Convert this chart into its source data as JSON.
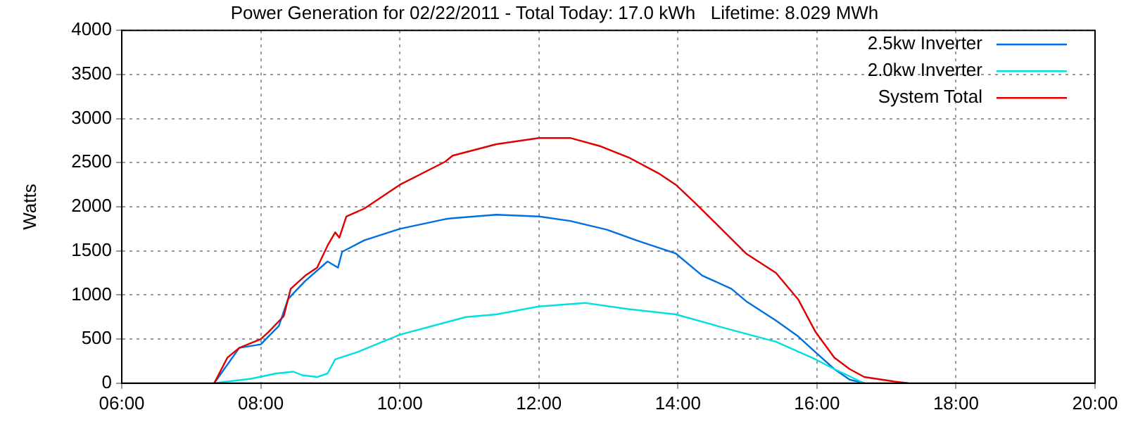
{
  "chart_data": {
    "type": "line",
    "title": "Power Generation for 02/22/2011 - Total Today: 17.0 kWh   Lifetime: 8.029 MWh",
    "ylabel": "Watts",
    "xlim": [
      6,
      20
    ],
    "xticks": [
      {
        "value": 6,
        "label": "06:00"
      },
      {
        "value": 8,
        "label": "08:00"
      },
      {
        "value": 10,
        "label": "10:00"
      },
      {
        "value": 12,
        "label": "12:00"
      },
      {
        "value": 14,
        "label": "14:00"
      },
      {
        "value": 16,
        "label": "16:00"
      },
      {
        "value": 18,
        "label": "18:00"
      },
      {
        "value": 20,
        "label": "20:00"
      }
    ],
    "ylim": [
      0,
      4000
    ],
    "yticks": [
      0,
      500,
      1000,
      1500,
      2000,
      2500,
      3000,
      3500,
      4000
    ],
    "grid": true,
    "legend": "top right",
    "marker": "none",
    "line_style": "solid",
    "series": [
      {
        "name": "2.5kw Inverter",
        "color": "#0070e0",
        "x": [
          7.33,
          7.69,
          8.0,
          8.11,
          8.26,
          8.39,
          8.47,
          8.64,
          8.96,
          9.11,
          9.17,
          9.49,
          10.0,
          10.65,
          10.76,
          11.39,
          12.0,
          12.45,
          12.98,
          13.4,
          13.97,
          14.35,
          14.77,
          14.98,
          15.41,
          15.73,
          15.98,
          16.25,
          16.47,
          16.68
        ],
        "values": [
          0,
          400,
          440,
          530,
          650,
          950,
          1020,
          1160,
          1380,
          1310,
          1490,
          1620,
          1750,
          1860,
          1870,
          1910,
          1890,
          1840,
          1740,
          1620,
          1470,
          1220,
          1070,
          930,
          710,
          530,
          350,
          160,
          40,
          0
        ]
      },
      {
        "name": "2.0kw Inverter",
        "color": "#00e0e0",
        "x": [
          7.33,
          7.86,
          8.22,
          8.47,
          8.6,
          8.81,
          8.96,
          9.07,
          9.38,
          10.0,
          10.76,
          10.95,
          11.39,
          12.0,
          12.66,
          13.29,
          13.97,
          14.56,
          14.98,
          15.41,
          15.98,
          16.25,
          16.57,
          16.68
        ],
        "values": [
          0,
          50,
          110,
          130,
          90,
          70,
          110,
          270,
          350,
          550,
          710,
          750,
          780,
          870,
          910,
          840,
          780,
          650,
          560,
          470,
          270,
          160,
          40,
          0
        ]
      },
      {
        "name": "System Total",
        "color": "#e00000",
        "x": [
          7.33,
          7.52,
          7.69,
          8.0,
          8.11,
          8.33,
          8.43,
          8.64,
          8.81,
          8.96,
          9.07,
          9.13,
          9.23,
          9.49,
          10.0,
          10.65,
          10.76,
          11.39,
          12.0,
          12.45,
          12.87,
          13.29,
          13.72,
          13.97,
          14.25,
          14.56,
          14.98,
          15.41,
          15.73,
          15.98,
          16.25,
          16.47,
          16.68,
          17.1,
          17.31
        ],
        "values": [
          0,
          290,
          400,
          500,
          580,
          760,
          1070,
          1220,
          1310,
          1560,
          1710,
          1650,
          1890,
          1980,
          2250,
          2510,
          2580,
          2710,
          2780,
          2780,
          2690,
          2560,
          2380,
          2250,
          2040,
          1800,
          1470,
          1250,
          950,
          580,
          290,
          160,
          70,
          20,
          0
        ]
      }
    ]
  }
}
